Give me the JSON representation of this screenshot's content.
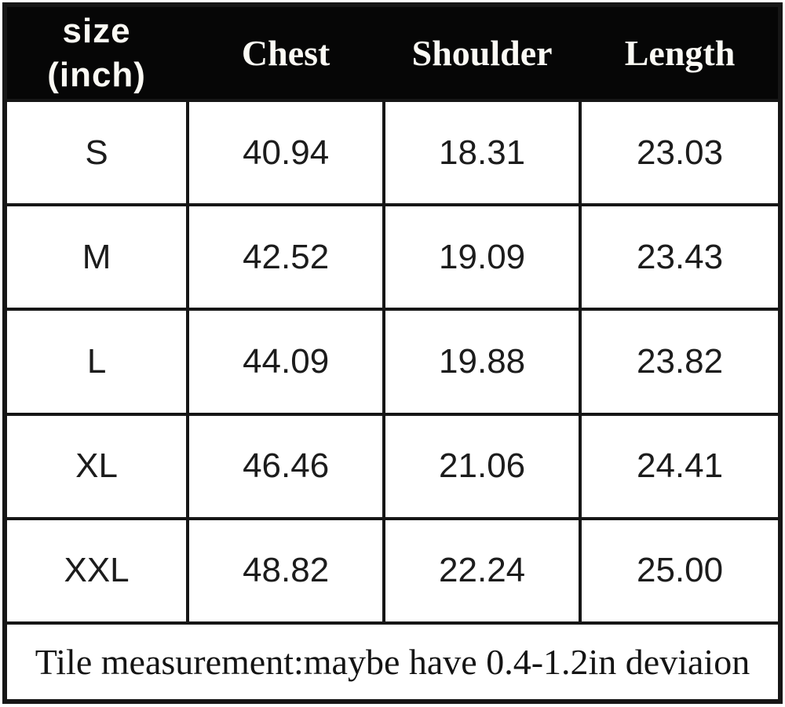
{
  "colors": {
    "header_bg": "#060606",
    "header_text": "#fbfaf4",
    "body_bg": "#ffffff",
    "body_text": "#1c1c1c",
    "border": "#161616"
  },
  "table": {
    "header": {
      "size_col": {
        "line1": "size",
        "line2": "(inch)"
      },
      "measure_cols": [
        "Chest",
        "Shoulder",
        "Length"
      ]
    },
    "rows": [
      {
        "size": "S",
        "chest": "40.94",
        "shoulder": "18.31",
        "length": "23.03"
      },
      {
        "size": "M",
        "chest": "42.52",
        "shoulder": "19.09",
        "length": "23.43"
      },
      {
        "size": "L",
        "chest": "44.09",
        "shoulder": "19.88",
        "length": "23.82"
      },
      {
        "size": "XL",
        "chest": "46.46",
        "shoulder": "21.06",
        "length": "24.41"
      },
      {
        "size": "XXL",
        "chest": "48.82",
        "shoulder": "22.24",
        "length": "25.00"
      }
    ],
    "footnote": "Tile measurement:maybe have 0.4-1.2in deviaion"
  },
  "chart_data": {
    "type": "table",
    "title": "size (inch)",
    "columns": [
      "size (inch)",
      "Chest",
      "Shoulder",
      "Length"
    ],
    "rows": [
      [
        "S",
        40.94,
        18.31,
        23.03
      ],
      [
        "M",
        42.52,
        19.09,
        23.43
      ],
      [
        "L",
        44.09,
        19.88,
        23.82
      ],
      [
        "XL",
        46.46,
        21.06,
        24.41
      ],
      [
        "XXL",
        48.82,
        22.24,
        25.0
      ]
    ],
    "units": "inch",
    "footnote": "Tile measurement:maybe have 0.4-1.2in deviaion"
  }
}
